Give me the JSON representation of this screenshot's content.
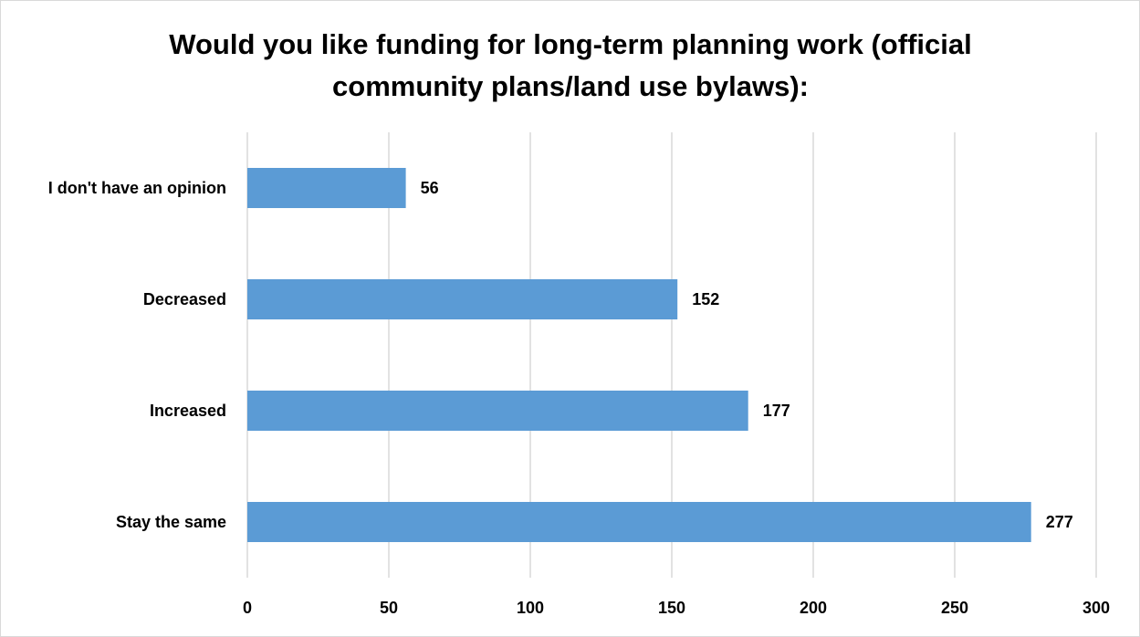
{
  "chart_data": {
    "type": "bar",
    "orientation": "horizontal",
    "title_lines": [
      "Would you like funding for long-term planning work (official",
      "community plans/land use bylaws):"
    ],
    "categories": [
      "I don't have an opinion",
      "Decreased",
      "Increased",
      "Stay the same"
    ],
    "values": [
      56,
      152,
      177,
      277
    ],
    "data_labels": [
      "56",
      "152",
      "177",
      "277"
    ],
    "xlim": [
      0,
      300
    ],
    "x_ticks": [
      0,
      50,
      100,
      150,
      200,
      250,
      300
    ],
    "x_tick_labels": [
      "0",
      "50",
      "100",
      "150",
      "200",
      "250",
      "300"
    ],
    "grid": true,
    "legend": "none",
    "bar_color": "#5b9bd5",
    "grid_color": "#d9d9d9"
  }
}
